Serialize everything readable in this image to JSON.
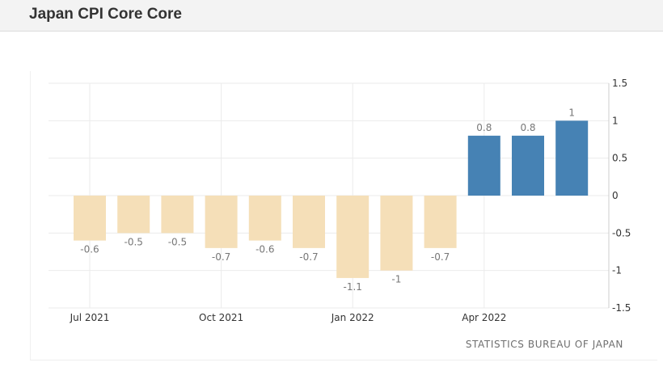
{
  "header": {
    "title": "Japan CPI Core Core"
  },
  "source": "STATISTICS BUREAU OF JAPAN",
  "colors": {
    "negative": "#f5dfb8",
    "positive": "#4682b4",
    "grid": "#ebebeb",
    "text": "#333333"
  },
  "chart_data": {
    "type": "bar",
    "title": "Japan CPI Core Core",
    "xlabel": "",
    "ylabel": "",
    "ylim": [
      -1.5,
      1.5
    ],
    "yticks": [
      1.5,
      1,
      0.5,
      0,
      -0.5,
      -1,
      -1.5
    ],
    "ytick_labels": [
      "1.5",
      "1",
      "0.5",
      "0",
      "-0.5",
      "-1",
      "-1.5"
    ],
    "y_axis_side": "right",
    "grid": true,
    "x_tick_labels": [
      {
        "label": "Jul 2021",
        "index": 0
      },
      {
        "label": "Oct 2021",
        "index": 3
      },
      {
        "label": "Jan 2022",
        "index": 6
      },
      {
        "label": "Apr 2022",
        "index": 9
      }
    ],
    "values": [
      -0.6,
      -0.5,
      -0.5,
      -0.7,
      -0.6,
      -0.7,
      -1.1,
      -1,
      -0.7,
      0.8,
      0.8,
      1
    ],
    "value_labels": [
      "-0.6",
      "-0.5",
      "-0.5",
      "-0.7",
      "-0.6",
      "-0.7",
      "-1.1",
      "-1",
      "-0.7",
      "0.8",
      "0.8",
      "1"
    ]
  }
}
